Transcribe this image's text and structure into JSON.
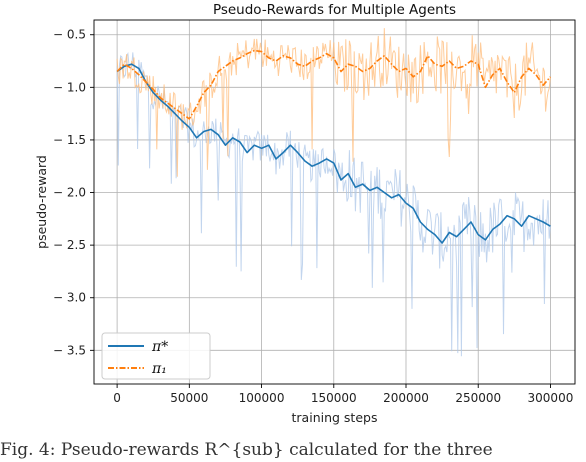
{
  "caption": {
    "text": "Fig. 4: Pseudo-rewards R^{sub} calculated for the three"
  },
  "chart_data": {
    "type": "line",
    "title": "Pseudo-Rewards for Multiple Agents",
    "xlabel": "training steps",
    "ylabel": "pseudo-reward",
    "xlim": [
      -16000,
      317000
    ],
    "ylim": [
      -3.82,
      -0.36
    ],
    "xticks": [
      0,
      50000,
      100000,
      150000,
      200000,
      250000,
      300000
    ],
    "yticks": [
      -0.5,
      -1.0,
      -1.5,
      -2.0,
      -2.5,
      -3.0,
      -3.5
    ],
    "ytick_labels": [
      "− 0.5",
      "− 1.0",
      "− 1.5",
      "− 2.0",
      "− 2.5",
      "− 3.0",
      "− 3.5"
    ],
    "grid": true,
    "legend_position": "bottom-left",
    "series": [
      {
        "name": "π*",
        "color": "#1f77b4",
        "linestyle": "solid",
        "raw_color": "#aec7e8",
        "x": [
          0,
          5000,
          10000,
          15000,
          20000,
          25000,
          30000,
          35000,
          40000,
          45000,
          50000,
          55000,
          60000,
          65000,
          70000,
          75000,
          80000,
          85000,
          90000,
          95000,
          100000,
          105000,
          110000,
          115000,
          120000,
          125000,
          130000,
          135000,
          140000,
          145000,
          150000,
          155000,
          160000,
          165000,
          170000,
          175000,
          180000,
          185000,
          190000,
          195000,
          200000,
          205000,
          210000,
          215000,
          220000,
          225000,
          230000,
          235000,
          240000,
          245000,
          250000,
          255000,
          260000,
          265000,
          270000,
          275000,
          280000,
          285000,
          290000,
          295000,
          300000
        ],
        "y": [
          -0.85,
          -0.8,
          -0.78,
          -0.82,
          -0.95,
          -1.05,
          -1.12,
          -1.18,
          -1.25,
          -1.32,
          -1.38,
          -1.48,
          -1.42,
          -1.4,
          -1.45,
          -1.55,
          -1.48,
          -1.52,
          -1.62,
          -1.55,
          -1.58,
          -1.55,
          -1.68,
          -1.62,
          -1.55,
          -1.62,
          -1.7,
          -1.75,
          -1.72,
          -1.68,
          -1.72,
          -1.88,
          -1.82,
          -1.95,
          -1.92,
          -1.98,
          -1.95,
          -2.0,
          -2.05,
          -2.02,
          -2.1,
          -2.15,
          -2.28,
          -2.35,
          -2.4,
          -2.48,
          -2.38,
          -2.42,
          -2.35,
          -2.28,
          -2.4,
          -2.45,
          -2.35,
          -2.3,
          -2.22,
          -2.25,
          -2.32,
          -2.22,
          -2.25,
          -2.28,
          -2.32
        ]
      },
      {
        "name": "π₁",
        "color": "#ff7f0e",
        "linestyle": "dashdot",
        "raw_color": "#ffbb78",
        "x": [
          0,
          5000,
          10000,
          15000,
          20000,
          25000,
          30000,
          35000,
          40000,
          45000,
          50000,
          55000,
          60000,
          65000,
          70000,
          75000,
          80000,
          85000,
          90000,
          95000,
          100000,
          105000,
          110000,
          115000,
          120000,
          125000,
          130000,
          135000,
          140000,
          145000,
          150000,
          155000,
          160000,
          165000,
          170000,
          175000,
          180000,
          185000,
          190000,
          195000,
          200000,
          205000,
          210000,
          215000,
          220000,
          225000,
          230000,
          235000,
          240000,
          245000,
          250000,
          255000,
          260000,
          265000,
          270000,
          275000,
          280000,
          285000,
          290000,
          295000,
          300000
        ],
        "y": [
          -0.85,
          -0.78,
          -0.82,
          -0.88,
          -0.95,
          -1.02,
          -1.1,
          -1.15,
          -1.2,
          -1.25,
          -1.3,
          -1.18,
          -1.05,
          -0.98,
          -0.85,
          -0.8,
          -0.75,
          -0.72,
          -0.68,
          -0.65,
          -0.66,
          -0.72,
          -0.75,
          -0.7,
          -0.72,
          -0.78,
          -0.8,
          -0.75,
          -0.72,
          -0.68,
          -0.72,
          -0.85,
          -0.78,
          -0.8,
          -0.85,
          -0.82,
          -0.75,
          -0.7,
          -0.78,
          -0.85,
          -0.82,
          -0.9,
          -0.85,
          -0.7,
          -0.78,
          -0.8,
          -0.75,
          -0.82,
          -0.8,
          -0.75,
          -0.78,
          -1.0,
          -0.88,
          -0.82,
          -0.95,
          -1.05,
          -0.9,
          -0.82,
          -0.88,
          -0.98,
          -0.9
        ]
      }
    ]
  }
}
